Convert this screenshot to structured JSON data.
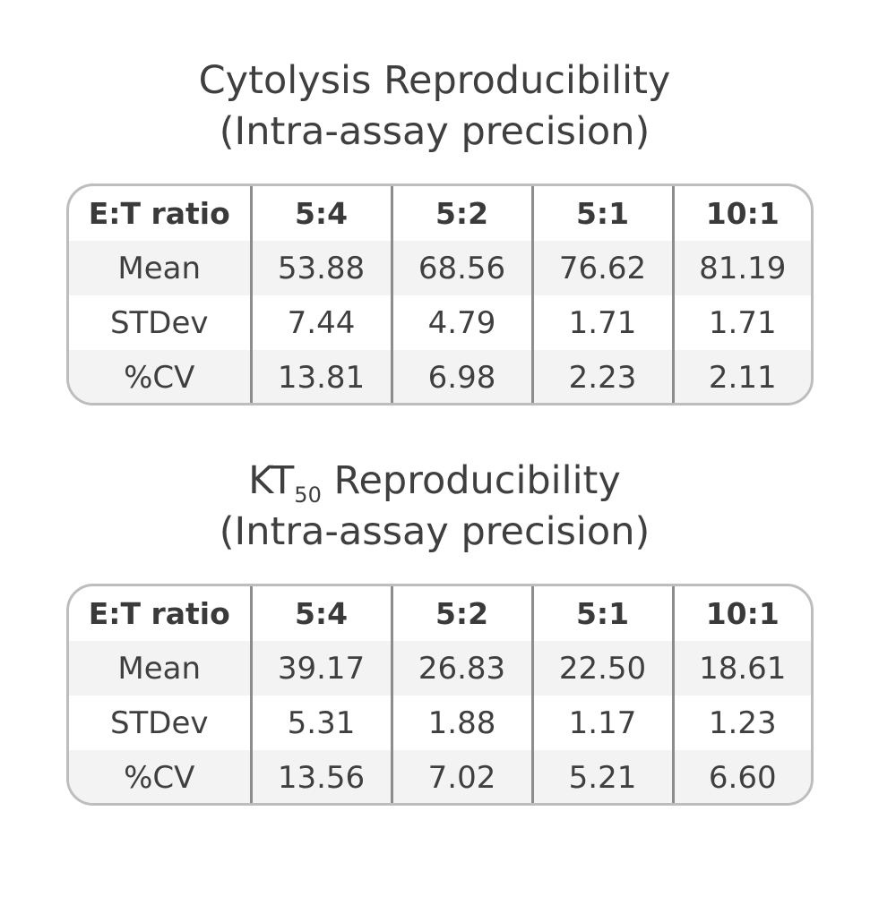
{
  "sections": [
    {
      "title_line1": "Cytolysis Reproducibility",
      "title_line2": "(Intra-assay precision)",
      "table": {
        "headers": [
          "E:T ratio",
          "5:4",
          "5:2",
          "5:1",
          "10:1"
        ],
        "rows": [
          {
            "label": "Mean",
            "values": [
              "53.88",
              "68.56",
              "76.62",
              "81.19"
            ]
          },
          {
            "label": "STDev",
            "values": [
              "7.44",
              "4.79",
              "1.71",
              "1.71"
            ]
          },
          {
            "label": "%CV",
            "values": [
              "13.81",
              "6.98",
              "2.23",
              "2.11"
            ]
          }
        ]
      }
    },
    {
      "title_line1_prefix": "KT",
      "title_line1_subscript": "50",
      "title_line1_suffix": " Reproducibility",
      "title_line2": "(Intra-assay precision)",
      "table": {
        "headers": [
          "E:T ratio",
          "5:4",
          "5:2",
          "5:1",
          "10:1"
        ],
        "rows": [
          {
            "label": "Mean",
            "values": [
              "39.17",
              "26.83",
              "22.50",
              "18.61"
            ]
          },
          {
            "label": "STDev",
            "values": [
              "5.31",
              "1.88",
              "1.17",
              "1.23"
            ]
          },
          {
            "label": "%CV",
            "values": [
              "13.56",
              "7.02",
              "5.21",
              "6.60"
            ]
          }
        ]
      }
    }
  ],
  "colors": {
    "text": "#3f3f3f",
    "row_shade": "#f3f3f3",
    "border": "#bdbdbd",
    "divider": "#8c8c8c"
  }
}
